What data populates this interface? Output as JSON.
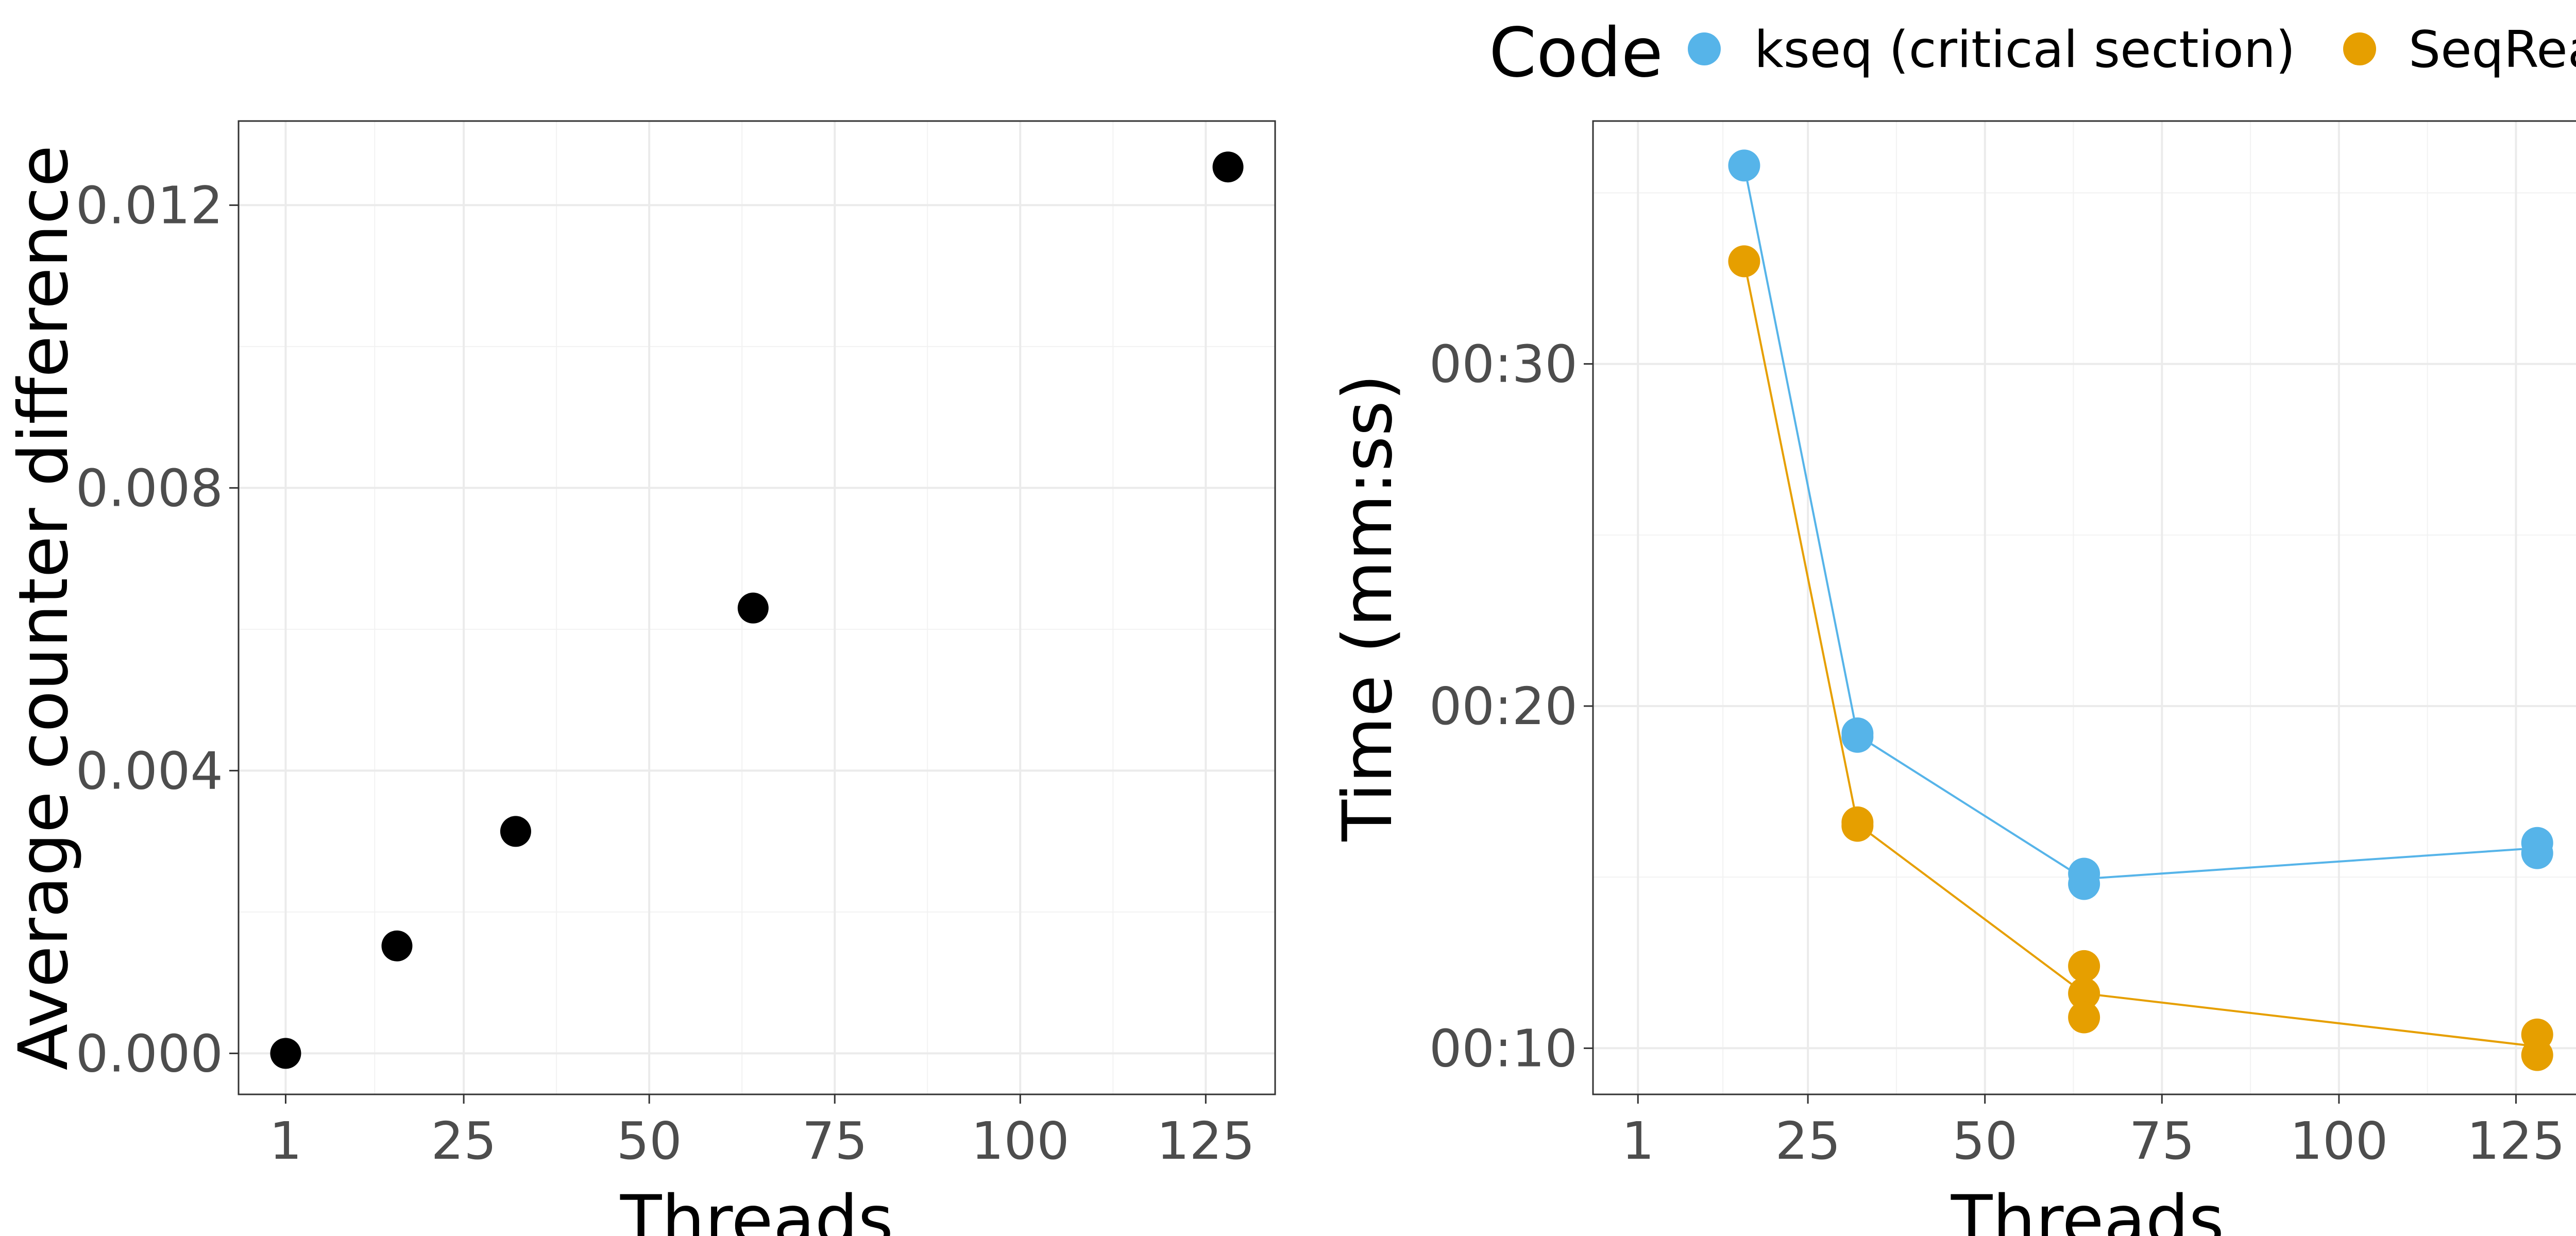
{
  "chart_data": [
    {
      "type": "scatter",
      "title": "",
      "xlabel": "Threads",
      "ylabel": "Average counter difference",
      "xlim": [
        -5.35,
        134.35
      ],
      "ylim": [
        -0.00058,
        0.01319
      ],
      "x_ticks": [
        1,
        25,
        50,
        75,
        100,
        125
      ],
      "y_ticks": [
        0.0,
        0.004,
        0.008,
        0.012
      ],
      "y_tick_labels": [
        "0.000",
        "0.004",
        "0.008",
        "0.012"
      ],
      "grid": true,
      "series": [
        {
          "color": "#000000",
          "points": [
            {
              "x": 1,
              "y": 0.0
            },
            {
              "x": 16,
              "y": 0.00152
            },
            {
              "x": 32,
              "y": 0.00314
            },
            {
              "x": 64,
              "y": 0.0063
            },
            {
              "x": 128,
              "y": 0.01254
            }
          ]
        }
      ]
    },
    {
      "type": "line",
      "title": "",
      "xlabel": "Threads",
      "ylabel": "Time (mm:ss)",
      "xlim": [
        -5.35,
        134.35
      ],
      "ylim": [
        8.65,
        37.1
      ],
      "x_ticks": [
        1,
        25,
        50,
        75,
        100,
        125
      ],
      "y_ticks": [
        10,
        20,
        30
      ],
      "y_tick_labels": [
        "00:10",
        "00:20",
        "00:30"
      ],
      "grid": true,
      "legend": {
        "title": "Code",
        "position": "top",
        "entries": [
          "kseq (critical section)",
          "SeqReader"
        ]
      },
      "series": [
        {
          "name": "kseq (critical section)",
          "color": "#56B4E9",
          "points": [
            {
              "x": 16,
              "y": 35.8
            },
            {
              "x": 32,
              "y": 19.2
            },
            {
              "x": 32,
              "y": 19.1
            },
            {
              "x": 64,
              "y": 15.1
            },
            {
              "x": 64,
              "y": 14.8
            },
            {
              "x": 128,
              "y": 16.0
            },
            {
              "x": 128,
              "y": 15.7
            }
          ],
          "line": [
            {
              "x": 16,
              "y": 35.8
            },
            {
              "x": 32,
              "y": 19.15
            },
            {
              "x": 64,
              "y": 14.95
            },
            {
              "x": 128,
              "y": 15.85
            }
          ]
        },
        {
          "name": "SeqReader",
          "color": "#E69F00",
          "points": [
            {
              "x": 16,
              "y": 33.0
            },
            {
              "x": 32,
              "y": 16.6
            },
            {
              "x": 32,
              "y": 16.5
            },
            {
              "x": 64,
              "y": 12.4
            },
            {
              "x": 64,
              "y": 11.6
            },
            {
              "x": 64,
              "y": 10.9
            },
            {
              "x": 128,
              "y": 10.4
            },
            {
              "x": 128,
              "y": 9.8
            }
          ],
          "line": [
            {
              "x": 16,
              "y": 33.0
            },
            {
              "x": 32,
              "y": 16.55
            },
            {
              "x": 64,
              "y": 11.6
            },
            {
              "x": 128,
              "y": 10.05
            }
          ]
        }
      ]
    }
  ]
}
